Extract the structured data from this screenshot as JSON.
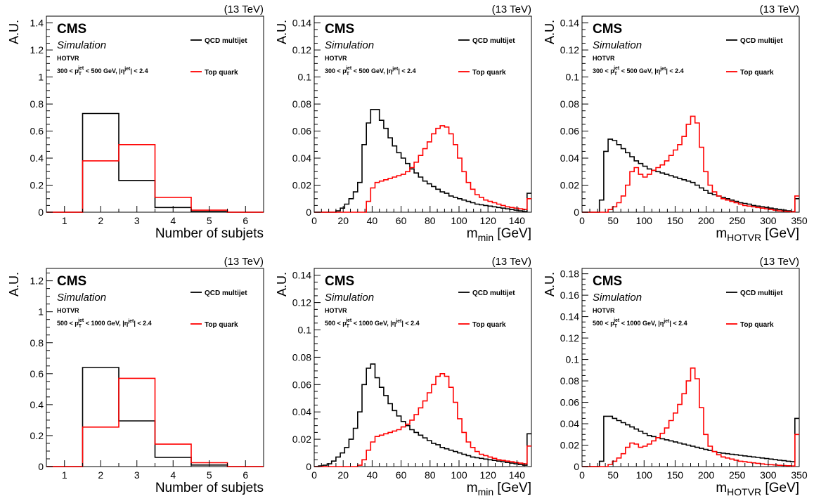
{
  "colors": {
    "qcd": "#000000",
    "top": "#ff0000",
    "axis": "#000000"
  },
  "chart_data": [
    {
      "type": "histogram",
      "experiment": "CMS",
      "subtitle": "Simulation",
      "algorithm": "HOTVR",
      "energy": "(13 TeV)",
      "selection": "300 < p_T^jet < 500 GeV, |η^jet| < 2.4",
      "xlabel": "Number of subjets",
      "xlabel_sub": "",
      "xlabel_unit": "",
      "ylabel": "A.U.",
      "xlim": [
        0.5,
        6.5
      ],
      "ylim": [
        0,
        1.45
      ],
      "xticks": [
        "1",
        "2",
        "3",
        "4",
        "5",
        "6"
      ],
      "xtick_values": [
        1,
        2,
        3,
        4,
        5,
        6
      ],
      "yticks": [
        "0",
        "0.2",
        "0.4",
        "0.6",
        "0.8",
        "1",
        "1.2",
        "1.4"
      ],
      "ytick_values": [
        0,
        0.2,
        0.4,
        0.6,
        0.8,
        1.0,
        1.2,
        1.4
      ],
      "bin_low": 0.5,
      "bin_width": 1,
      "series": [
        {
          "name": "QCD multijet",
          "color": "#000000",
          "values": [
            0.0,
            0.73,
            0.235,
            0.035,
            0.005,
            0.0
          ]
        },
        {
          "name": "Top quark",
          "color": "#ff0000",
          "values": [
            0.0,
            0.38,
            0.5,
            0.11,
            0.015,
            0.0
          ]
        }
      ]
    },
    {
      "type": "histogram",
      "experiment": "CMS",
      "subtitle": "Simulation",
      "algorithm": "HOTVR",
      "energy": "(13 TeV)",
      "selection": "300 < p_T^jet < 500 GeV, |η^jet| < 2.4",
      "xlabel": "m",
      "xlabel_sub": "min",
      "xlabel_unit": "[GeV]",
      "ylabel": "A.U.",
      "xlim": [
        0,
        150
      ],
      "ylim": [
        0,
        0.145
      ],
      "xticks": [
        "0",
        "20",
        "40",
        "60",
        "80",
        "100",
        "120",
        "140"
      ],
      "xtick_values": [
        0,
        20,
        40,
        60,
        80,
        100,
        120,
        140
      ],
      "yticks": [
        "0",
        "0.02",
        "0.04",
        "0.06",
        "0.08",
        "0.1",
        "0.12",
        "0.14"
      ],
      "ytick_values": [
        0,
        0.02,
        0.04,
        0.06,
        0.08,
        0.1,
        0.12,
        0.14
      ],
      "bin_low": 0,
      "bin_width": 3,
      "series": [
        {
          "name": "QCD multijet",
          "color": "#000000",
          "values": [
            0,
            0,
            0,
            0,
            0,
            0.001,
            0.003,
            0.006,
            0.01,
            0.015,
            0.022,
            0.05,
            0.066,
            0.076,
            0.076,
            0.068,
            0.062,
            0.055,
            0.049,
            0.044,
            0.04,
            0.036,
            0.032,
            0.029,
            0.026,
            0.023,
            0.021,
            0.019,
            0.017,
            0.015,
            0.014,
            0.012,
            0.011,
            0.01,
            0.009,
            0.008,
            0.007,
            0.006,
            0.0055,
            0.005,
            0.0045,
            0.004,
            0.0035,
            0.003,
            0.0025,
            0.002,
            0.0015,
            0.001,
            0.0005,
            0.014
          ]
        },
        {
          "name": "Top quark",
          "color": "#ff0000",
          "values": [
            0,
            0,
            0,
            0,
            0,
            0,
            0,
            0,
            0,
            0,
            0,
            0,
            0.008,
            0.018,
            0.022,
            0.023,
            0.024,
            0.025,
            0.026,
            0.027,
            0.028,
            0.03,
            0.033,
            0.037,
            0.042,
            0.047,
            0.052,
            0.058,
            0.062,
            0.064,
            0.063,
            0.058,
            0.05,
            0.04,
            0.03,
            0.022,
            0.017,
            0.013,
            0.011,
            0.009,
            0.008,
            0.007,
            0.006,
            0.005,
            0.004,
            0.0035,
            0.003,
            0.0025,
            0.002,
            0.01
          ]
        }
      ]
    },
    {
      "type": "histogram",
      "experiment": "CMS",
      "subtitle": "Simulation",
      "algorithm": "HOTVR",
      "energy": "(13 TeV)",
      "selection": "300 < p_T^jet < 500 GeV, |η^jet| < 2.4",
      "xlabel": "m",
      "xlabel_sub": "HOTVR",
      "xlabel_unit": "[GeV]",
      "ylabel": "A.U.",
      "xlim": [
        0,
        350
      ],
      "ylim": [
        0,
        0.145
      ],
      "xticks": [
        "0",
        "50",
        "100",
        "150",
        "200",
        "250",
        "300",
        "350"
      ],
      "xtick_values": [
        0,
        50,
        100,
        150,
        200,
        250,
        300,
        350
      ],
      "yticks": [
        "0",
        "0.02",
        "0.04",
        "0.06",
        "0.08",
        "0.1",
        "0.12",
        "0.14"
      ],
      "ytick_values": [
        0,
        0.02,
        0.04,
        0.06,
        0.08,
        0.1,
        0.12,
        0.14
      ],
      "bin_low": 0,
      "bin_width": 7,
      "series": [
        {
          "name": "QCD multijet",
          "color": "#000000",
          "values": [
            0,
            0,
            0,
            0,
            0.009,
            0.045,
            0.054,
            0.053,
            0.05,
            0.047,
            0.044,
            0.041,
            0.038,
            0.036,
            0.034,
            0.032,
            0.031,
            0.03,
            0.029,
            0.028,
            0.027,
            0.026,
            0.025,
            0.024,
            0.023,
            0.022,
            0.02,
            0.018,
            0.016,
            0.014,
            0.013,
            0.012,
            0.011,
            0.01,
            0.009,
            0.008,
            0.007,
            0.0065,
            0.006,
            0.005,
            0.0045,
            0.004,
            0.0035,
            0.003,
            0.0025,
            0.002,
            0.0015,
            0.001,
            0.0005,
            0.01
          ]
        },
        {
          "name": "Top quark",
          "color": "#ff0000",
          "values": [
            0,
            0,
            0,
            0,
            0,
            0,
            0.002,
            0.004,
            0.007,
            0.012,
            0.02,
            0.03,
            0.033,
            0.028,
            0.026,
            0.028,
            0.031,
            0.033,
            0.035,
            0.038,
            0.042,
            0.046,
            0.05,
            0.056,
            0.065,
            0.071,
            0.066,
            0.048,
            0.03,
            0.02,
            0.015,
            0.012,
            0.01,
            0.009,
            0.008,
            0.007,
            0.006,
            0.005,
            0.0045,
            0.004,
            0.0035,
            0.003,
            0.0025,
            0.002,
            0.0015,
            0.001,
            0.0008,
            0.0005,
            0.0003,
            0.012
          ]
        }
      ]
    },
    {
      "type": "histogram",
      "experiment": "CMS",
      "subtitle": "Simulation",
      "algorithm": "HOTVR",
      "energy": "(13 TeV)",
      "selection": "500 < p_T^jet < 1000 GeV, |η^jet| < 2.4",
      "xlabel": "Number of subjets",
      "xlabel_sub": "",
      "xlabel_unit": "",
      "ylabel": "A.U.",
      "xlim": [
        0.5,
        6.5
      ],
      "ylim": [
        0,
        1.28
      ],
      "xticks": [
        "1",
        "2",
        "3",
        "4",
        "5",
        "6"
      ],
      "xtick_values": [
        1,
        2,
        3,
        4,
        5,
        6
      ],
      "yticks": [
        "0",
        "0.2",
        "0.4",
        "0.6",
        "0.8",
        "1",
        "1.2"
      ],
      "ytick_values": [
        0,
        0.2,
        0.4,
        0.6,
        0.8,
        1.0,
        1.2
      ],
      "bin_low": 0.5,
      "bin_width": 1,
      "series": [
        {
          "name": "QCD multijet",
          "color": "#000000",
          "values": [
            0.0,
            0.64,
            0.295,
            0.06,
            0.01,
            0.0
          ]
        },
        {
          "name": "Top quark",
          "color": "#ff0000",
          "values": [
            0.0,
            0.255,
            0.57,
            0.145,
            0.025,
            0.0
          ]
        }
      ]
    },
    {
      "type": "histogram",
      "experiment": "CMS",
      "subtitle": "Simulation",
      "algorithm": "HOTVR",
      "energy": "(13 TeV)",
      "selection": "500 < p_T^jet < 1000 GeV, |η^jet| < 2.4",
      "xlabel": "m",
      "xlabel_sub": "min",
      "xlabel_unit": "[GeV]",
      "ylabel": "A.U.",
      "xlim": [
        0,
        150
      ],
      "ylim": [
        0,
        0.145
      ],
      "xticks": [
        "0",
        "20",
        "40",
        "60",
        "80",
        "100",
        "120",
        "140"
      ],
      "xtick_values": [
        0,
        20,
        40,
        60,
        80,
        100,
        120,
        140
      ],
      "yticks": [
        "0",
        "0.02",
        "0.04",
        "0.06",
        "0.08",
        "0.1",
        "0.12",
        "0.14"
      ],
      "ytick_values": [
        0,
        0.02,
        0.04,
        0.06,
        0.08,
        0.1,
        0.12,
        0.14
      ],
      "bin_low": 0,
      "bin_width": 3,
      "series": [
        {
          "name": "QCD multijet",
          "color": "#000000",
          "values": [
            0,
            0.0005,
            0.001,
            0.002,
            0.004,
            0.007,
            0.01,
            0.014,
            0.02,
            0.028,
            0.04,
            0.06,
            0.072,
            0.075,
            0.065,
            0.058,
            0.052,
            0.046,
            0.041,
            0.037,
            0.033,
            0.03,
            0.027,
            0.025,
            0.023,
            0.021,
            0.019,
            0.017,
            0.016,
            0.014,
            0.013,
            0.012,
            0.011,
            0.01,
            0.009,
            0.008,
            0.007,
            0.0065,
            0.006,
            0.0055,
            0.005,
            0.0045,
            0.004,
            0.0035,
            0.003,
            0.0025,
            0.002,
            0.0015,
            0.001,
            0.024
          ]
        },
        {
          "name": "Top quark",
          "color": "#ff0000",
          "values": [
            0,
            0,
            0,
            0,
            0,
            0,
            0,
            0,
            0,
            0,
            0.001,
            0.005,
            0.012,
            0.018,
            0.022,
            0.023,
            0.024,
            0.025,
            0.026,
            0.027,
            0.029,
            0.031,
            0.034,
            0.038,
            0.043,
            0.048,
            0.054,
            0.06,
            0.066,
            0.068,
            0.066,
            0.058,
            0.047,
            0.035,
            0.025,
            0.018,
            0.014,
            0.011,
            0.009,
            0.008,
            0.007,
            0.006,
            0.005,
            0.0045,
            0.004,
            0.0035,
            0.003,
            0.0025,
            0.002,
            0.015
          ]
        }
      ]
    },
    {
      "type": "histogram",
      "experiment": "CMS",
      "subtitle": "Simulation",
      "algorithm": "HOTVR",
      "energy": "(13 TeV)",
      "selection": "500 < p_T^jet < 1000 GeV, |η^jet| < 2.4",
      "xlabel": "m",
      "xlabel_sub": "HOTVR",
      "xlabel_unit": "[GeV]",
      "ylabel": "A.U.",
      "xlim": [
        0,
        350
      ],
      "ylim": [
        0,
        0.185
      ],
      "xticks": [
        "0",
        "50",
        "100",
        "150",
        "200",
        "250",
        "300",
        "350"
      ],
      "xtick_values": [
        0,
        50,
        100,
        150,
        200,
        250,
        300,
        350
      ],
      "yticks": [
        "0",
        "0.02",
        "0.04",
        "0.06",
        "0.08",
        "0.1",
        "0.12",
        "0.14",
        "0.16",
        "0.18"
      ],
      "ytick_values": [
        0,
        0.02,
        0.04,
        0.06,
        0.08,
        0.1,
        0.12,
        0.14,
        0.16,
        0.18
      ],
      "bin_low": 0,
      "bin_width": 7,
      "series": [
        {
          "name": "QCD multijet",
          "color": "#000000",
          "values": [
            0,
            0,
            0,
            0,
            0.005,
            0.047,
            0.047,
            0.045,
            0.043,
            0.041,
            0.039,
            0.037,
            0.035,
            0.033,
            0.031,
            0.029,
            0.028,
            0.027,
            0.026,
            0.025,
            0.024,
            0.023,
            0.022,
            0.021,
            0.02,
            0.019,
            0.018,
            0.017,
            0.016,
            0.015,
            0.014,
            0.013,
            0.0125,
            0.012,
            0.0115,
            0.011,
            0.0105,
            0.01,
            0.0095,
            0.009,
            0.0085,
            0.008,
            0.0075,
            0.007,
            0.0065,
            0.006,
            0.0055,
            0.005,
            0.0045,
            0.045
          ]
        },
        {
          "name": "Top quark",
          "color": "#ff0000",
          "values": [
            0,
            0,
            0,
            0,
            0,
            0,
            0.002,
            0.005,
            0.008,
            0.012,
            0.018,
            0.022,
            0.021,
            0.018,
            0.019,
            0.021,
            0.024,
            0.027,
            0.031,
            0.036,
            0.043,
            0.05,
            0.058,
            0.068,
            0.08,
            0.092,
            0.082,
            0.055,
            0.03,
            0.019,
            0.014,
            0.011,
            0.009,
            0.008,
            0.007,
            0.006,
            0.005,
            0.0045,
            0.004,
            0.0035,
            0.003,
            0.0025,
            0.002,
            0.0018,
            0.0015,
            0.0012,
            0.001,
            0.0008,
            0.0005,
            0.03
          ]
        }
      ]
    }
  ]
}
